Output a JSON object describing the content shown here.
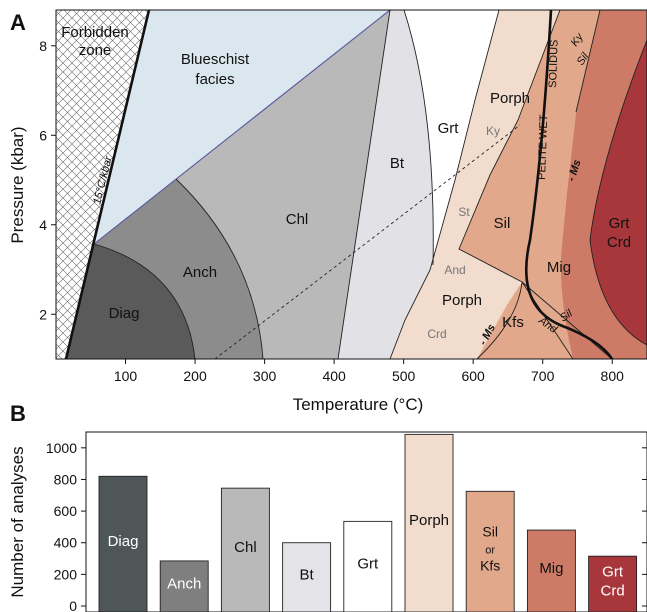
{
  "chart_data": [
    {
      "panel_label": "A",
      "type": "phase-diagram",
      "xlabel": "Temperature (°C)",
      "ylabel": "Pressure (kbar)",
      "xlim": [
        0,
        850
      ],
      "ylim": [
        1,
        8.8
      ],
      "xticks": [
        100,
        200,
        300,
        400,
        500,
        600,
        700,
        800
      ],
      "yticks": [
        2,
        4,
        6,
        8
      ],
      "regions": [
        {
          "label": "Forbidden\nzone",
          "color": "#ffffff"
        },
        {
          "label": "Blueschist\nfacies",
          "color": "#dbe7ee"
        },
        {
          "label": "Diag",
          "color": "#5a5a5a"
        },
        {
          "label": "Anch",
          "color": "#8c8c8c"
        },
        {
          "label": "Chl",
          "color": "#b9b9b9"
        },
        {
          "label": "Bt",
          "color": "#e2e2e6"
        },
        {
          "label": "Grt",
          "color": "#ffffff"
        },
        {
          "label": "Porph",
          "color": "#f1dccd"
        },
        {
          "label": "Sil",
          "color": "#e2a88b"
        },
        {
          "label": "Kfs",
          "color": "#e2a88b"
        },
        {
          "label": "Mig",
          "color": "#cd7b66"
        },
        {
          "label": "Grt\nCrd",
          "color": "#a8373c"
        }
      ],
      "line_labels": [
        "15°C/kbar",
        "SOLIDUS",
        "PELITE WET",
        "- Ms",
        "- Ms",
        "Ky",
        "Sil",
        "And",
        "Sil"
      ],
      "mineral_labels": [
        "Ky",
        "St",
        "And",
        "Crd"
      ]
    },
    {
      "panel_label": "B",
      "type": "bar",
      "ylabel": "Number of analyses",
      "ylim": [
        0,
        1100
      ],
      "yticks": [
        0,
        200,
        400,
        600,
        800,
        1000
      ],
      "categories": [
        "Diag",
        "Anch",
        "Chl",
        "Bt",
        "Grt",
        "Porph",
        "Sil\nor\nKfs",
        "Mig",
        "Grt\nCrd"
      ],
      "values": [
        820,
        285,
        745,
        400,
        535,
        1085,
        725,
        480,
        315
      ],
      "colors": [
        "#4f5657",
        "#7f7f7f",
        "#b9b9b9",
        "#e4e4e8",
        "#ffffff",
        "#f1dccd",
        "#e2a88b",
        "#cd7b66",
        "#a8373c"
      ],
      "label_colors": [
        "#ffffff",
        "#ffffff",
        "#111111",
        "#111111",
        "#111111",
        "#111111",
        "#111111",
        "#111111",
        "#ffffff"
      ]
    }
  ]
}
